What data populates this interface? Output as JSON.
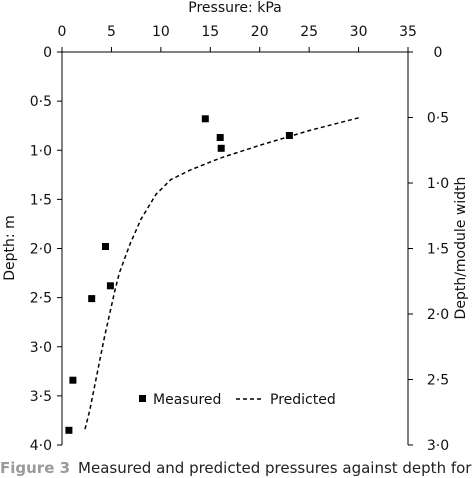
{
  "chart_data": {
    "type": "scatter",
    "title": "",
    "xlabel": "Pressure: kPa",
    "ylabel": "Depth: m",
    "y2label": "Depth/module width",
    "xlim": [
      0,
      35
    ],
    "ylim": [
      0,
      4
    ],
    "y2lim": [
      0,
      3.0
    ],
    "x_axis_position": "top",
    "y_axis_inverted": true,
    "x_ticks": [
      "0",
      "5",
      "10",
      "15",
      "20",
      "25",
      "30",
      "35"
    ],
    "y_ticks": [
      "0",
      "0·5",
      "1·0",
      "1·5",
      "2·0",
      "2·5",
      "3·0",
      "3·5",
      "4·0"
    ],
    "y2_ticks": [
      "0",
      "0·5",
      "1·0",
      "1·5",
      "2·0",
      "2·5",
      "3·0"
    ],
    "grid": false,
    "legend_placement": "bottom",
    "series": [
      {
        "name": "Measured",
        "kind": "scatter",
        "marker": "square",
        "color": "#000000",
        "points": [
          {
            "x": 14.5,
            "y": 0.68
          },
          {
            "x": 16.0,
            "y": 0.87
          },
          {
            "x": 23.0,
            "y": 0.85
          },
          {
            "x": 16.1,
            "y": 0.98
          },
          {
            "x": 4.4,
            "y": 1.98
          },
          {
            "x": 4.9,
            "y": 2.38
          },
          {
            "x": 3.0,
            "y": 2.51
          },
          {
            "x": 1.1,
            "y": 3.34
          },
          {
            "x": 0.7,
            "y": 3.85
          }
        ]
      },
      {
        "name": "Predicted",
        "kind": "line",
        "style": "dashed",
        "color": "#000000",
        "points": [
          {
            "x": 30.0,
            "y": 0.67
          },
          {
            "x": 25.0,
            "y": 0.8
          },
          {
            "x": 20.0,
            "y": 0.95
          },
          {
            "x": 16.0,
            "y": 1.08
          },
          {
            "x": 13.0,
            "y": 1.2
          },
          {
            "x": 11.0,
            "y": 1.3
          },
          {
            "x": 9.5,
            "y": 1.45
          },
          {
            "x": 8.0,
            "y": 1.7
          },
          {
            "x": 6.9,
            "y": 1.95
          },
          {
            "x": 5.8,
            "y": 2.25
          },
          {
            "x": 5.3,
            "y": 2.45
          },
          {
            "x": 4.3,
            "y": 2.9
          },
          {
            "x": 3.5,
            "y": 3.3
          },
          {
            "x": 2.8,
            "y": 3.65
          },
          {
            "x": 2.3,
            "y": 3.85
          }
        ]
      }
    ]
  },
  "caption": {
    "label": "Figure 3",
    "text": "Measured and predicted pressures against depth for"
  }
}
